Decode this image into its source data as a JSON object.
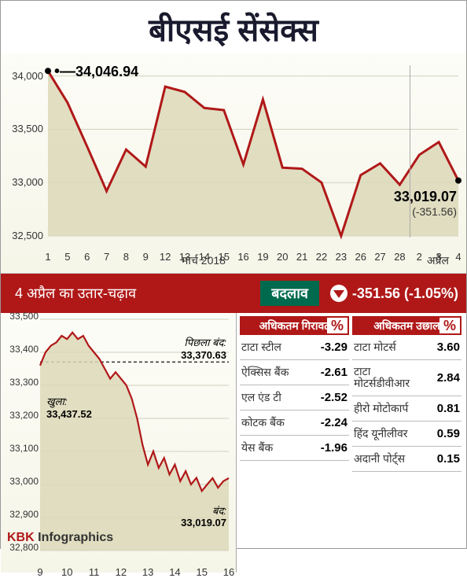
{
  "title": "बीएसई सेंसेक्स",
  "main_chart": {
    "type": "area",
    "ylim": [
      32500,
      34100
    ],
    "yticks": [
      32500,
      33000,
      33500,
      34000
    ],
    "xticks": [
      "1",
      "5",
      "6",
      "7",
      "8",
      "9",
      "12",
      "13",
      "14",
      "15",
      "16",
      "19",
      "20",
      "21",
      "22",
      "23",
      "26",
      "27",
      "28",
      "2",
      "3",
      "4"
    ],
    "month_label_1": "मार्च 2018",
    "month_label_2": "अप्रैल",
    "divider_after_index": 18,
    "values": [
      34046.94,
      33750,
      33340,
      32920,
      33310,
      33150,
      33900,
      33850,
      33700,
      33680,
      33170,
      33780,
      33140,
      33130,
      33000,
      32500,
      33070,
      33180,
      32980,
      33260,
      33380,
      33019.07
    ],
    "line_color": "#b01818",
    "line_width": 3,
    "fill_color": "#dcd8b8",
    "fill_opacity": 0.85,
    "grid_color": "#cfcfc0",
    "background": "#fdfdf5",
    "start_callout": "34,046.94",
    "end_callout": "33,019.07",
    "end_diff": "(-351.56)"
  },
  "change_bar": {
    "date": "4 अप्रैल का उतार-चढ़ाव",
    "label": "बदलाव",
    "value": "-351.56 (-1.05%)"
  },
  "intraday_chart": {
    "type": "line",
    "ylim": [
      32800,
      33500
    ],
    "yticks": [
      32800,
      32900,
      33000,
      33100,
      33200,
      33300,
      33400,
      33500
    ],
    "xticks": [
      "9",
      "10",
      "11",
      "12",
      "13",
      "14",
      "15",
      "16"
    ],
    "prev_close": {
      "label": "पिछला बंद:",
      "value": "33,370.63",
      "y": 33370.63
    },
    "open": {
      "label": "खुला:",
      "value": "33,437.52"
    },
    "close_anno": {
      "label": "बंद:",
      "value": "33,019.07"
    },
    "line_color": "#b01818",
    "line_width": 2.2,
    "fill_color": "#dcd8b8",
    "grid_color": "#cfcfc0",
    "values": [
      33360,
      33400,
      33420,
      33430,
      33450,
      33440,
      33460,
      33440,
      33450,
      33420,
      33400,
      33380,
      33350,
      33320,
      33340,
      33320,
      33300,
      33260,
      33200,
      33120,
      33060,
      33100,
      33050,
      33080,
      33030,
      33060,
      33010,
      33040,
      33000,
      33020,
      32980,
      33000,
      33019,
      32990,
      33010,
      33019
    ]
  },
  "losers": {
    "header": "अधिकतम गिरावट",
    "pct": "%",
    "rows": [
      {
        "name": "टाटा स्टील",
        "val": "-3.29"
      },
      {
        "name": "ऐक्सिस बैंक",
        "val": "-2.61"
      },
      {
        "name": "एल एंड टी",
        "val": "-2.52"
      },
      {
        "name": "कोटक बैंक",
        "val": "-2.24"
      },
      {
        "name": "येस बैंक",
        "val": "-1.96"
      }
    ]
  },
  "gainers": {
    "header": "अधिकतम उछाल",
    "pct": "%",
    "rows": [
      {
        "name": "टाटा मोटर्स",
        "val": "3.60"
      },
      {
        "name": "टाटा मोटर्सडीवीआर",
        "val": "2.84"
      },
      {
        "name": "हीरो मोटोकार्प",
        "val": "0.81"
      },
      {
        "name": "हिंद यूनीलीवर",
        "val": "0.59"
      },
      {
        "name": "अदानी पोर्ट्स",
        "val": "0.15"
      }
    ]
  },
  "footer": {
    "brand": "KBK",
    "sub": "Infographics"
  }
}
